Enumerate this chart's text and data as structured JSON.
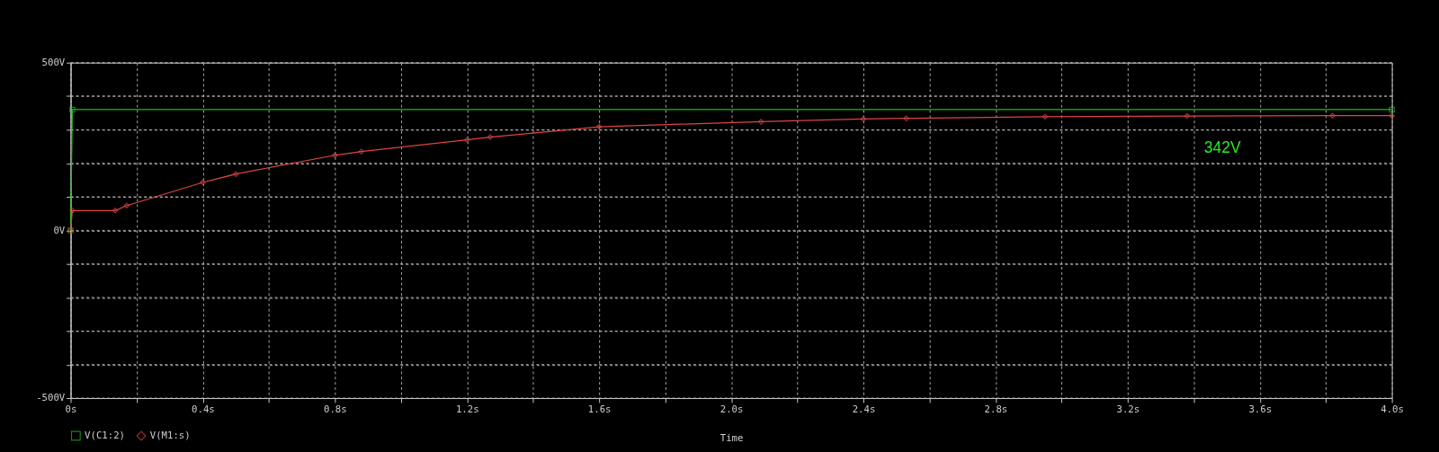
{
  "chart_data": {
    "type": "line",
    "xlabel": "Time",
    "xlim": [
      0,
      4.0
    ],
    "ylim": [
      -500,
      500
    ],
    "xticks": [
      {
        "value": 0,
        "label": "0s"
      },
      {
        "value": 0.2,
        "label": null
      },
      {
        "value": 0.4,
        "label": "0.4s"
      },
      {
        "value": 0.6,
        "label": null
      },
      {
        "value": 0.8,
        "label": "0.8s"
      },
      {
        "value": 1.0,
        "label": null
      },
      {
        "value": 1.2,
        "label": "1.2s"
      },
      {
        "value": 1.4,
        "label": null
      },
      {
        "value": 1.6,
        "label": "1.6s"
      },
      {
        "value": 1.8,
        "label": null
      },
      {
        "value": 2.0,
        "label": "2.0s"
      },
      {
        "value": 2.2,
        "label": null
      },
      {
        "value": 2.4,
        "label": "2.4s"
      },
      {
        "value": 2.6,
        "label": null
      },
      {
        "value": 2.8,
        "label": "2.8s"
      },
      {
        "value": 3.0,
        "label": null
      },
      {
        "value": 3.2,
        "label": "3.2s"
      },
      {
        "value": 3.4,
        "label": null
      },
      {
        "value": 3.6,
        "label": "3.6s"
      },
      {
        "value": 3.8,
        "label": null
      },
      {
        "value": 4.0,
        "label": "4.0s"
      }
    ],
    "yticks": [
      {
        "value": -500,
        "label": "-500V"
      },
      {
        "value": -400,
        "label": null
      },
      {
        "value": -300,
        "label": null
      },
      {
        "value": -200,
        "label": null
      },
      {
        "value": -100,
        "label": null
      },
      {
        "value": 0,
        "label": "0V"
      },
      {
        "value": 100,
        "label": null
      },
      {
        "value": 200,
        "label": null
      },
      {
        "value": 300,
        "label": null
      },
      {
        "value": 400,
        "label": null
      },
      {
        "value": 500,
        "label": "500V"
      }
    ],
    "grid": true,
    "legend": "bottom left",
    "line_style": "solid",
    "series": [
      {
        "name": "V(C1:2)",
        "color": "#22bb22",
        "marker": "square",
        "x": [
          0,
          0.005,
          4.0
        ],
        "values": [
          0,
          360,
          360
        ]
      },
      {
        "name": "V(M1:s)",
        "color": "#dd4444",
        "marker": "diamond",
        "x": [
          0,
          0.005,
          0.135,
          0.17,
          0.4,
          0.5,
          0.8,
          0.88,
          1.2,
          1.27,
          1.6,
          2.09,
          2.4,
          2.53,
          2.95,
          3.38,
          3.82,
          4.0
        ],
        "values": [
          0,
          59,
          59,
          74,
          143,
          168,
          224,
          235,
          270,
          278,
          309,
          324,
          332,
          334,
          339,
          341,
          342,
          342
        ]
      }
    ],
    "annotations": [
      {
        "text": "342V",
        "x": 3.5,
        "y": 342
      }
    ]
  }
}
